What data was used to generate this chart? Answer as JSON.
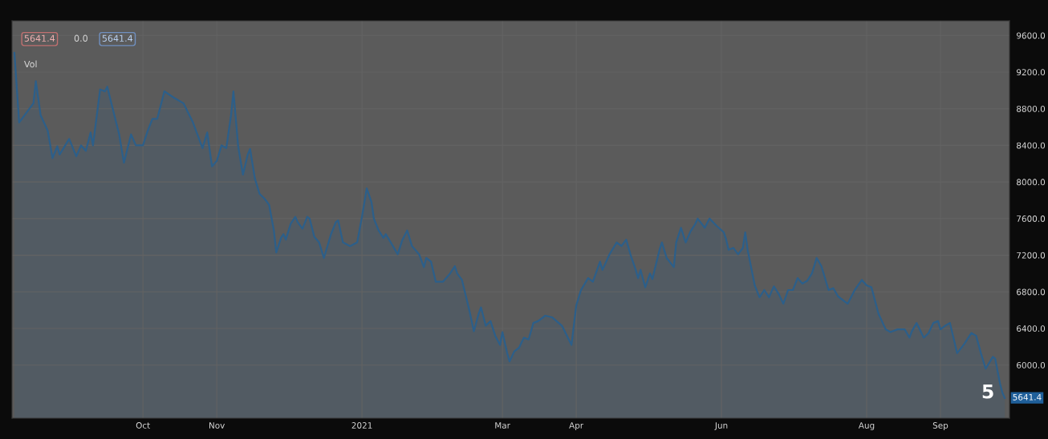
{
  "chart_data": {
    "type": "area",
    "x": [
      "2020-08-08",
      "2020-08-10",
      "2020-08-16",
      "2020-08-17",
      "2020-08-19",
      "2020-08-22",
      "2020-08-24",
      "2020-08-26",
      "2020-08-27",
      "2020-08-31",
      "2020-09-03",
      "2020-09-05",
      "2020-09-07",
      "2020-09-09",
      "2020-09-10",
      "2020-09-13",
      "2020-09-15",
      "2020-09-16",
      "2020-09-21",
      "2020-09-23",
      "2020-09-26",
      "2020-09-28",
      "2020-10-01",
      "2020-10-03",
      "2020-10-05",
      "2020-10-07",
      "2020-10-10",
      "2020-10-14",
      "2020-10-18",
      "2020-10-22",
      "2020-10-26",
      "2020-10-28",
      "2020-10-30",
      "2020-11-01",
      "2020-11-03",
      "2020-11-05",
      "2020-11-07",
      "2020-11-08",
      "2020-11-10",
      "2020-11-12",
      "2020-11-14",
      "2020-11-15",
      "2020-11-17",
      "2020-11-19",
      "2020-11-21",
      "2020-11-23",
      "2020-11-25",
      "2020-11-26",
      "2020-11-28",
      "2020-11-29",
      "2020-11-30",
      "2020-12-02",
      "2020-12-04",
      "2020-12-05",
      "2020-12-07",
      "2020-12-09",
      "2020-12-10",
      "2020-12-12",
      "2020-12-14",
      "2020-12-16",
      "2020-12-19",
      "2020-12-21",
      "2020-12-22",
      "2020-12-24",
      "2020-12-27",
      "2020-12-30",
      "2021-01-01",
      "2021-01-03",
      "2021-01-05",
      "2021-01-06",
      "2021-01-08",
      "2021-01-10",
      "2021-01-11",
      "2021-01-14",
      "2021-01-16",
      "2021-01-18",
      "2021-01-20",
      "2021-01-22",
      "2021-01-25",
      "2021-01-27",
      "2021-01-28",
      "2021-01-30",
      "2021-02-01",
      "2021-02-04",
      "2021-02-07",
      "2021-02-09",
      "2021-02-10",
      "2021-02-12",
      "2021-02-15",
      "2021-02-17",
      "2021-02-19",
      "2021-02-20",
      "2021-02-22",
      "2021-02-24",
      "2021-02-26",
      "2021-02-28",
      "2021-03-01",
      "2021-03-03",
      "2021-03-04",
      "2021-03-06",
      "2021-03-08",
      "2021-03-10",
      "2021-03-12",
      "2021-03-14",
      "2021-03-16",
      "2021-03-19",
      "2021-03-22",
      "2021-03-26",
      "2021-03-30",
      "2021-04-01",
      "2021-04-03",
      "2021-04-06",
      "2021-04-08",
      "2021-04-11",
      "2021-04-12",
      "2021-04-15",
      "2021-04-18",
      "2021-04-20",
      "2021-04-22",
      "2021-04-24",
      "2021-04-26",
      "2021-04-27",
      "2021-04-28",
      "2021-04-30",
      "2021-05-02",
      "2021-05-03",
      "2021-05-06",
      "2021-05-07",
      "2021-05-09",
      "2021-05-12",
      "2021-05-13",
      "2021-05-15",
      "2021-05-17",
      "2021-05-19",
      "2021-05-21",
      "2021-05-22",
      "2021-05-25",
      "2021-05-27",
      "2021-05-30",
      "2021-06-02",
      "2021-06-03",
      "2021-06-04",
      "2021-06-06",
      "2021-06-08",
      "2021-06-10",
      "2021-06-11",
      "2021-06-12",
      "2021-06-15",
      "2021-06-17",
      "2021-06-19",
      "2021-06-21",
      "2021-06-23",
      "2021-06-25",
      "2021-06-27",
      "2021-06-29",
      "2021-07-01",
      "2021-07-03",
      "2021-07-05",
      "2021-07-07",
      "2021-07-09",
      "2021-07-11",
      "2021-07-13",
      "2021-07-16",
      "2021-07-18",
      "2021-07-20",
      "2021-07-24",
      "2021-07-27",
      "2021-07-30",
      "2021-08-01",
      "2021-08-03",
      "2021-08-06",
      "2021-08-09",
      "2021-08-11",
      "2021-08-14",
      "2021-08-17",
      "2021-08-19",
      "2021-08-20",
      "2021-08-22",
      "2021-08-25",
      "2021-08-27",
      "2021-08-29",
      "2021-08-31",
      "2021-09-01",
      "2021-09-03",
      "2021-09-05",
      "2021-09-08",
      "2021-09-11",
      "2021-09-14",
      "2021-09-16",
      "2021-09-18",
      "2021-09-20",
      "2021-09-23",
      "2021-09-24",
      "2021-09-26",
      "2021-09-27",
      "2021-09-28"
    ],
    "series": [
      {
        "color": "#2c5f8a",
        "values": [
          9410,
          8650,
          8860,
          9100,
          8730,
          8560,
          8260,
          8390,
          8300,
          8470,
          8280,
          8400,
          8340,
          8540,
          8400,
          9010,
          8990,
          9040,
          8520,
          8210,
          8520,
          8400,
          8400,
          8560,
          8690,
          8690,
          8990,
          8920,
          8860,
          8650,
          8370,
          8540,
          8170,
          8230,
          8400,
          8370,
          8730,
          8990,
          8390,
          8080,
          8300,
          8360,
          8040,
          7870,
          7820,
          7750,
          7470,
          7230,
          7390,
          7430,
          7370,
          7540,
          7620,
          7560,
          7490,
          7620,
          7600,
          7400,
          7340,
          7170,
          7430,
          7560,
          7580,
          7340,
          7300,
          7340,
          7620,
          7930,
          7780,
          7600,
          7470,
          7390,
          7430,
          7300,
          7210,
          7370,
          7470,
          7300,
          7210,
          7070,
          7170,
          7130,
          6910,
          6910,
          7000,
          7080,
          7000,
          6930,
          6610,
          6370,
          6560,
          6630,
          6430,
          6480,
          6320,
          6220,
          6360,
          6130,
          6040,
          6150,
          6190,
          6300,
          6280,
          6460,
          6480,
          6540,
          6520,
          6430,
          6220,
          6650,
          6820,
          6950,
          6910,
          7130,
          7040,
          7210,
          7340,
          7300,
          7370,
          7190,
          7040,
          6950,
          7040,
          6850,
          7000,
          6940,
          7260,
          7340,
          7170,
          7070,
          7340,
          7500,
          7340,
          7460,
          7540,
          7600,
          7500,
          7600,
          7520,
          7450,
          7370,
          7260,
          7280,
          7210,
          7280,
          7450,
          7260,
          6870,
          6740,
          6820,
          6740,
          6860,
          6780,
          6670,
          6820,
          6820,
          6950,
          6890,
          6920,
          7000,
          7170,
          7080,
          6820,
          6840,
          6750,
          6670,
          6820,
          6930,
          6870,
          6850,
          6560,
          6390,
          6360,
          6390,
          6390,
          6300,
          6370,
          6460,
          6300,
          6350,
          6460,
          6480,
          6390,
          6430,
          6460,
          6130,
          6230,
          6350,
          6320,
          6130,
          5960,
          6090,
          6070,
          5800,
          5700,
          5640
        ]
      }
    ],
    "xlim": [
      "2020-08-07",
      "2021-09-30"
    ],
    "xticks": [
      {
        "value": "2020-10-01",
        "label": "Oct"
      },
      {
        "value": "2020-11-01",
        "label": "Nov"
      },
      {
        "value": "2021-01-01",
        "label": "2021"
      },
      {
        "value": "2021-03-01",
        "label": "Mar"
      },
      {
        "value": "2021-04-01",
        "label": "Apr"
      },
      {
        "value": "2021-06-01",
        "label": "Jun"
      },
      {
        "value": "2021-08-01",
        "label": "Aug"
      },
      {
        "value": "2021-09-01",
        "label": "Sep"
      }
    ],
    "ylim": [
      5420,
      9760
    ],
    "yticks": [
      {
        "value": 6000,
        "label": "6000.0"
      },
      {
        "value": 6400,
        "label": "6400.0"
      },
      {
        "value": 6800,
        "label": "6800.0"
      },
      {
        "value": 7200,
        "label": "7200.0"
      },
      {
        "value": 7600,
        "label": "7600.0"
      },
      {
        "value": 8000,
        "label": "8000.0"
      },
      {
        "value": 8400,
        "label": "8400.0"
      },
      {
        "value": 8800,
        "label": "8800.0"
      },
      {
        "value": 9200,
        "label": "9200.0"
      },
      {
        "value": 9600,
        "label": "9600.0"
      }
    ],
    "grid": true,
    "annotations": [
      "5641.4",
      "0.0",
      "5641.4",
      "Vol",
      {
        "text": "5641.4",
        "x": "2021-09-28",
        "y": 5641.4
      },
      "5"
    ]
  }
}
